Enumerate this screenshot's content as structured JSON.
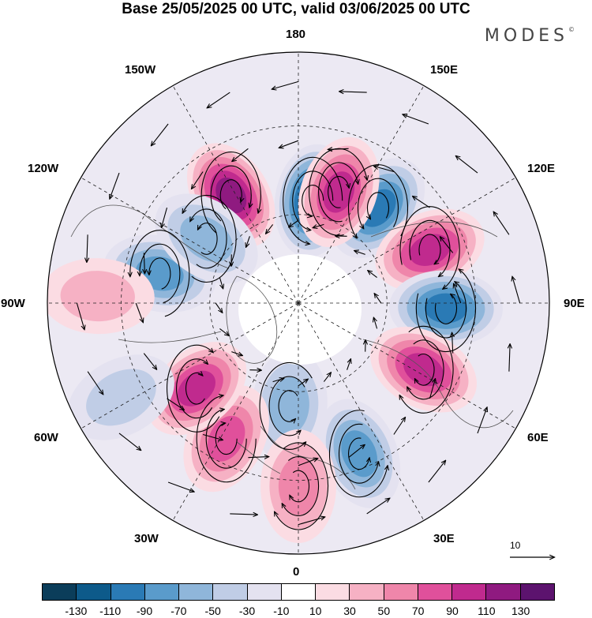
{
  "title": "Base 25/05/2025 00 UTC, valid 03/06/2025 00 UTC",
  "brand": {
    "text": "MODES",
    "mark": "©"
  },
  "longitude_labels": {
    "n": "180",
    "ne1": "150E",
    "ne2": "120E",
    "e": "90E",
    "se1": "60E",
    "se2": "30E",
    "s": "0",
    "sw1": "30W",
    "sw2": "60W",
    "w": "90W",
    "nw1": "120W",
    "nw2": "150W"
  },
  "vector_reference": {
    "value": "10"
  },
  "colorbar": {
    "colors": [
      "#0b3d5a",
      "#0d5a8a",
      "#2a7ab5",
      "#5a9bcb",
      "#8fb6da",
      "#c0cde6",
      "#e4e2f0",
      "#ffffff",
      "#fbdce3",
      "#f6b1c4",
      "#ef86aa",
      "#e0509b",
      "#c02a8e",
      "#8f1a80",
      "#5c136e"
    ],
    "ticks": [
      "-130",
      "-110",
      "-90",
      "-70",
      "-50",
      "-30",
      "-10",
      "10",
      "30",
      "50",
      "70",
      "90",
      "110",
      "130"
    ]
  },
  "anomaly_centers": [
    {
      "lon": 172,
      "lat": 55,
      "value": -120
    },
    {
      "lon": 140,
      "lat": 48,
      "value": -100
    },
    {
      "lon": 160,
      "lat": 50,
      "value": 100
    },
    {
      "lon": -148,
      "lat": 47,
      "value": 120
    },
    {
      "lon": 112,
      "lat": 42,
      "value": 100
    },
    {
      "lon": 88,
      "lat": 40,
      "value": -100
    },
    {
      "lon": 62,
      "lat": 42,
      "value": 100
    },
    {
      "lon": 22,
      "lat": 35,
      "value": -80
    },
    {
      "lon": -5,
      "lat": 55,
      "value": -60
    },
    {
      "lon": -28,
      "lat": 38,
      "value": 80
    },
    {
      "lon": -50,
      "lat": 45,
      "value": 100
    },
    {
      "lon": -102,
      "lat": 42,
      "value": -70
    },
    {
      "lon": -125,
      "lat": 52,
      "value": -60
    },
    {
      "lon": -92,
      "lat": 22,
      "value": 30
    },
    {
      "lon": -62,
      "lat": 22,
      "value": -30
    },
    {
      "lon": 0,
      "lat": 28,
      "value": 60
    }
  ]
}
